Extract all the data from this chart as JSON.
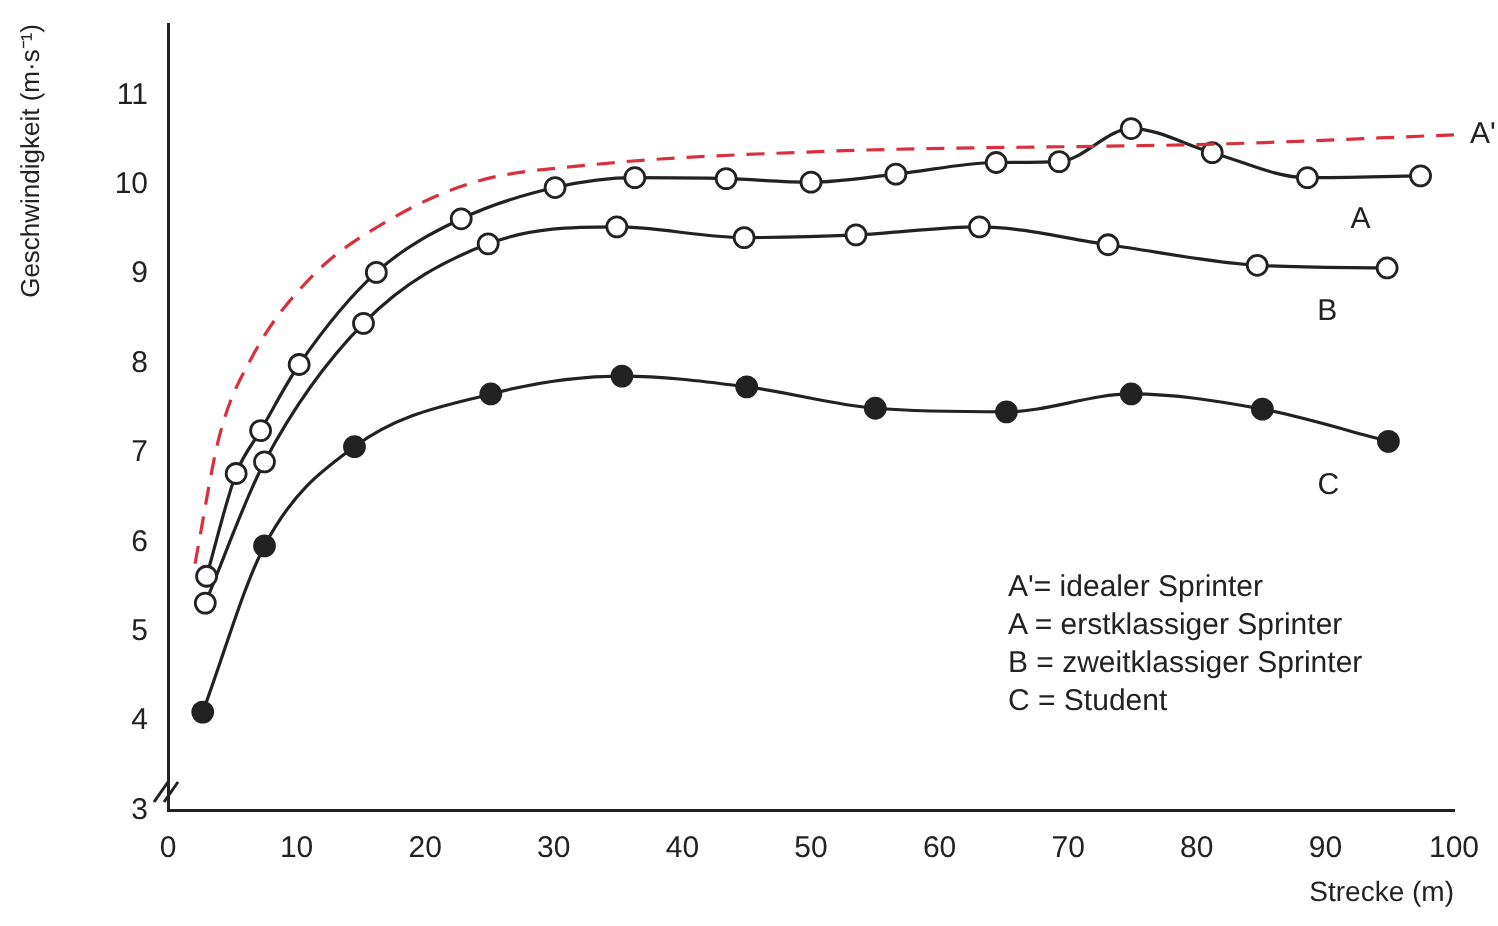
{
  "chart_data": {
    "type": "line",
    "xlabel": "Strecke (m)",
    "ylabel": "Geschwindigkeit (m·s⁻¹)",
    "xlim": [
      0,
      100
    ],
    "xticks": [
      0,
      10,
      20,
      30,
      40,
      50,
      60,
      70,
      80,
      90,
      100
    ],
    "ylim": [
      3,
      11.8
    ],
    "yticks": [
      3,
      4,
      5,
      6,
      7,
      8,
      9,
      10,
      11
    ],
    "grid": false,
    "legend": false,
    "marker": "circle",
    "series": [
      {
        "name": "A'",
        "color": "#d9303e",
        "line_style": "dashed",
        "marker": "none",
        "x": [
          2.1,
          4,
          6.6,
          11.3,
          17,
          23.8,
          32.6,
          50.2,
          82.4,
          100
        ],
        "values": [
          5.76,
          7.19,
          8.09,
          8.99,
          9.59,
          10.03,
          10.22,
          10.37,
          10.46,
          10.56
        ]
      },
      {
        "name": "A",
        "color": "#222222",
        "x": [
          3,
          5.3,
          7.2,
          10.2,
          16.2,
          22.8,
          30.1,
          36.3,
          43.4,
          50,
          56.6,
          64.4,
          69.3,
          74.9,
          81.2,
          88.6,
          97.4
        ],
        "values": [
          5.62,
          6.77,
          7.25,
          7.99,
          9.02,
          9.62,
          9.97,
          10.08,
          10.07,
          10.03,
          10.12,
          10.25,
          10.26,
          10.63,
          10.36,
          10.08,
          10.1
        ]
      },
      {
        "name": "B",
        "color": "#222222",
        "x": [
          2.9,
          7.5,
          15.2,
          24.9,
          34.9,
          44.8,
          53.5,
          63.1,
          73.1,
          84.7,
          94.8
        ],
        "values": [
          5.32,
          6.9,
          8.45,
          9.34,
          9.53,
          9.41,
          9.44,
          9.53,
          9.33,
          9.1,
          9.07
        ]
      },
      {
        "name": "C",
        "color": "#222222",
        "marker": "circle",
        "x": [
          2.7,
          7.5,
          14.5,
          25.1,
          35.3,
          45,
          55,
          65.2,
          74.9,
          85.1,
          94.9
        ],
        "values": [
          4.1,
          5.96,
          7.07,
          7.66,
          7.86,
          7.74,
          7.5,
          7.46,
          7.66,
          7.49,
          7.13
        ]
      }
    ],
    "annotations": [
      "A'= idealer Sprinter",
      "A = erstklassiger Sprinter",
      "B = zweitklassiger Sprinter",
      "C = Student"
    ]
  }
}
